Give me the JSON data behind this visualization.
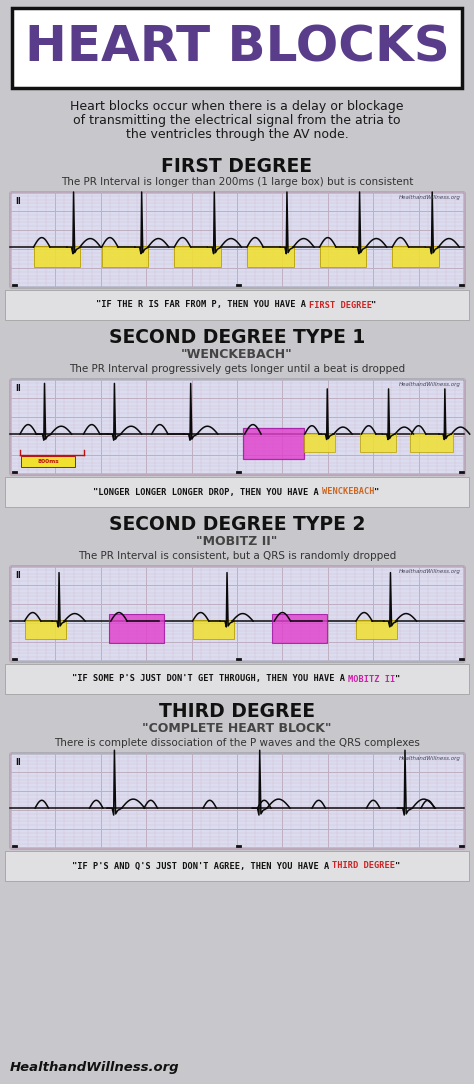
{
  "bg_color": "#c8c8cc",
  "title": "HEART BLOCKS",
  "title_color": "#5a3d8a",
  "watermark": "HealthandWillness.org",
  "footer": "HealthandWillness.org",
  "intro_lines": [
    "Heart blocks occur when there is a delay or blockage",
    "of transmitting the electrical signal from the atria to",
    "the ventricles through the AV node."
  ],
  "sections": [
    {
      "heading": "FIRST DEGREE",
      "subtitle": "",
      "desc": "The PR Interval is longer than 200ms (1 large box) but is consistent",
      "quote_plain": "\"IF THE R IS FAR FROM P, THEN YOU HAVE A ",
      "quote_color": "FIRST DEGREE",
      "quote_end": "\"",
      "quote_hcolor": "#cc2222",
      "ekg_type": "first_degree"
    },
    {
      "heading": "SECOND DEGREE TYPE 1",
      "subtitle": "\"WENCKEBACH\"",
      "desc": "The PR Interval progressively gets longer until a beat is dropped",
      "quote_plain": "\"LONGER LONGER LONGER DROP, THEN YOU HAVE A ",
      "quote_color": "WENCKEBACH",
      "quote_end": "\"",
      "quote_hcolor": "#cc6622",
      "ekg_type": "wenckebach"
    },
    {
      "heading": "SECOND DEGREE TYPE 2",
      "subtitle": "\"MOBITZ II\"",
      "desc": "The PR Interval is consistent, but a QRS is randomly dropped",
      "quote_plain": "\"IF SOME P'S JUST DON'T GET THROUGH, THEN YOU HAVE A ",
      "quote_color": "MOBITZ II",
      "quote_end": "\"",
      "quote_hcolor": "#cc22aa",
      "ekg_type": "mobitz2"
    },
    {
      "heading": "THIRD DEGREE",
      "subtitle": "\"COMPLETE HEART BLOCK\"",
      "desc": "There is complete dissociation of the P waves and the QRS complexes",
      "quote_plain": "\"IF P'S AND Q'S JUST DON'T AGREE, THEN YOU HAVE A ",
      "quote_color": "THIRD DEGREE",
      "quote_end": "\"",
      "quote_hcolor": "#cc2222",
      "ekg_type": "third_degree"
    }
  ]
}
